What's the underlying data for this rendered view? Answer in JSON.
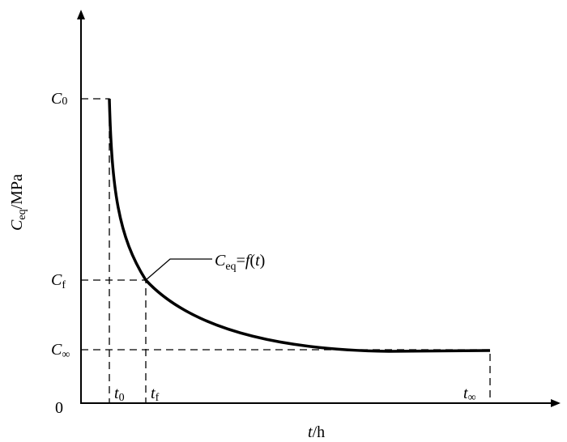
{
  "y_axis_label": {
    "symbol": "C",
    "subscript": "eq",
    "unit": "/MPa"
  },
  "x_axis_label": {
    "symbol": "t",
    "unit": "/h"
  },
  "origin": "0",
  "y_labels": [
    {
      "symbol": "C",
      "subscript": "0"
    },
    {
      "symbol": "C",
      "subscript": "f"
    },
    {
      "symbol": "C",
      "subscript": "∞"
    }
  ],
  "x_labels": [
    {
      "symbol": "t",
      "subscript": "0"
    },
    {
      "symbol": "t",
      "subscript": "f"
    },
    {
      "symbol": "t",
      "subscript": "∞"
    }
  ],
  "annotation": {
    "symbol": "C",
    "subscript": "eq",
    "equals": "=",
    "function": "f",
    "open": "(",
    "argument": "t",
    "close": ")"
  }
}
